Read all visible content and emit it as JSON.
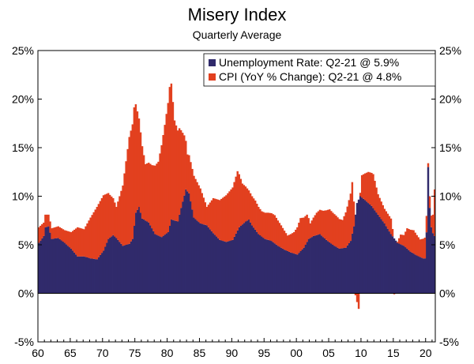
{
  "chart_data": {
    "type": "area",
    "title": "Misery Index",
    "subtitle": "Quarterly Average",
    "xlabel": "",
    "ylabel": "",
    "x_range": [
      1960,
      2021.5
    ],
    "ylim": [
      -5,
      25
    ],
    "y_ticks": [
      "25%",
      "20%",
      "15%",
      "10%",
      "5%",
      "0%",
      "-5%"
    ],
    "x_ticks": [
      "60",
      "65",
      "70",
      "75",
      "80",
      "85",
      "90",
      "95",
      "00",
      "05",
      "10",
      "15",
      "20"
    ],
    "legend_position": "top-right",
    "colors": {
      "unemployment": "#302a6b",
      "cpi": "#e2401f",
      "axis": "#000000"
    },
    "series": [
      {
        "name": "Unemployment Rate: Q2-21 @ 5.9%",
        "key": "unemployment",
        "points": [
          [
            1960.0,
            5.2
          ],
          [
            1960.75,
            5.9
          ],
          [
            1961.0,
            6.8
          ],
          [
            1961.5,
            6.9
          ],
          [
            1962.0,
            5.6
          ],
          [
            1963.0,
            5.7
          ],
          [
            1964.0,
            5.2
          ],
          [
            1965.0,
            4.6
          ],
          [
            1966.0,
            3.8
          ],
          [
            1967.0,
            3.8
          ],
          [
            1968.0,
            3.6
          ],
          [
            1969.0,
            3.5
          ],
          [
            1970.0,
            4.4
          ],
          [
            1970.75,
            5.6
          ],
          [
            1971.5,
            6.0
          ],
          [
            1972.0,
            5.7
          ],
          [
            1973.0,
            4.9
          ],
          [
            1974.0,
            5.1
          ],
          [
            1974.5,
            5.6
          ],
          [
            1975.0,
            8.3
          ],
          [
            1975.5,
            8.9
          ],
          [
            1976.0,
            7.7
          ],
          [
            1977.0,
            7.3
          ],
          [
            1978.0,
            6.1
          ],
          [
            1979.0,
            5.8
          ],
          [
            1980.0,
            6.3
          ],
          [
            1980.5,
            7.6
          ],
          [
            1981.5,
            7.4
          ],
          [
            1982.0,
            8.8
          ],
          [
            1982.75,
            10.7
          ],
          [
            1983.25,
            10.3
          ],
          [
            1984.0,
            7.8
          ],
          [
            1985.0,
            7.2
          ],
          [
            1986.0,
            7.0
          ],
          [
            1987.0,
            6.2
          ],
          [
            1988.0,
            5.5
          ],
          [
            1989.0,
            5.3
          ],
          [
            1990.0,
            5.5
          ],
          [
            1991.0,
            6.8
          ],
          [
            1992.0,
            7.4
          ],
          [
            1992.5,
            7.6
          ],
          [
            1993.0,
            7.0
          ],
          [
            1994.0,
            6.1
          ],
          [
            1995.0,
            5.6
          ],
          [
            1996.0,
            5.4
          ],
          [
            1997.0,
            4.9
          ],
          [
            1998.0,
            4.5
          ],
          [
            1999.0,
            4.2
          ],
          [
            2000.0,
            4.0
          ],
          [
            2001.0,
            4.7
          ],
          [
            2001.75,
            5.6
          ],
          [
            2002.5,
            5.9
          ],
          [
            2003.5,
            6.1
          ],
          [
            2004.5,
            5.5
          ],
          [
            2005.5,
            5.0
          ],
          [
            2006.5,
            4.6
          ],
          [
            2007.5,
            4.7
          ],
          [
            2008.25,
            5.4
          ],
          [
            2008.75,
            6.9
          ],
          [
            2009.25,
            9.3
          ],
          [
            2009.75,
            10.0
          ],
          [
            2010.5,
            9.6
          ],
          [
            2011.5,
            9.0
          ],
          [
            2012.5,
            8.1
          ],
          [
            2013.5,
            7.2
          ],
          [
            2014.5,
            6.1
          ],
          [
            2015.5,
            5.2
          ],
          [
            2016.5,
            4.9
          ],
          [
            2017.5,
            4.3
          ],
          [
            2018.5,
            3.9
          ],
          [
            2019.5,
            3.6
          ],
          [
            2019.9,
            3.6
          ],
          [
            2020.25,
            13.0
          ],
          [
            2020.5,
            8.8
          ],
          [
            2020.75,
            6.8
          ],
          [
            2021.0,
            6.2
          ],
          [
            2021.25,
            5.9
          ]
        ]
      },
      {
        "name": "CPI (YoY % Change): Q2-21 @ 4.8%",
        "key": "cpi",
        "points": [
          [
            1960.0,
            1.6
          ],
          [
            1961.0,
            1.3
          ],
          [
            1962.0,
            1.1
          ],
          [
            1963.0,
            1.2
          ],
          [
            1964.0,
            1.3
          ],
          [
            1965.0,
            1.7
          ],
          [
            1966.0,
            3.0
          ],
          [
            1967.0,
            2.8
          ],
          [
            1968.0,
            4.2
          ],
          [
            1969.0,
            5.4
          ],
          [
            1970.0,
            5.7
          ],
          [
            1971.0,
            4.4
          ],
          [
            1972.0,
            3.2
          ],
          [
            1973.0,
            6.2
          ],
          [
            1974.0,
            11.0
          ],
          [
            1974.75,
            12.2
          ],
          [
            1975.5,
            9.1
          ],
          [
            1976.5,
            5.8
          ],
          [
            1977.5,
            6.5
          ],
          [
            1978.5,
            7.6
          ],
          [
            1979.5,
            11.3
          ],
          [
            1980.25,
            14.3
          ],
          [
            1980.5,
            14.0
          ],
          [
            1981.0,
            10.3
          ],
          [
            1981.75,
            8.9
          ],
          [
            1982.5,
            6.2
          ],
          [
            1983.0,
            3.8
          ],
          [
            1984.0,
            4.3
          ],
          [
            1985.0,
            3.6
          ],
          [
            1986.0,
            1.9
          ],
          [
            1987.0,
            3.6
          ],
          [
            1988.0,
            4.1
          ],
          [
            1989.0,
            4.8
          ],
          [
            1990.0,
            5.4
          ],
          [
            1990.75,
            6.1
          ],
          [
            1991.5,
            4.2
          ],
          [
            1992.5,
            3.0
          ],
          [
            1993.5,
            3.0
          ],
          [
            1994.5,
            2.6
          ],
          [
            1995.5,
            2.8
          ],
          [
            1996.5,
            2.9
          ],
          [
            1997.5,
            2.3
          ],
          [
            1998.5,
            1.6
          ],
          [
            1999.5,
            2.2
          ],
          [
            2000.5,
            3.4
          ],
          [
            2001.5,
            2.8
          ],
          [
            2002.0,
            1.5
          ],
          [
            2003.0,
            2.3
          ],
          [
            2004.0,
            2.7
          ],
          [
            2005.0,
            3.4
          ],
          [
            2006.0,
            3.2
          ],
          [
            2007.0,
            2.9
          ],
          [
            2007.75,
            4.0
          ],
          [
            2008.5,
            5.3
          ],
          [
            2009.0,
            -0.2
          ],
          [
            2009.5,
            -1.6
          ],
          [
            2010.0,
            2.3
          ],
          [
            2011.0,
            3.2
          ],
          [
            2011.75,
            3.5
          ],
          [
            2012.5,
            2.1
          ],
          [
            2013.5,
            1.5
          ],
          [
            2014.5,
            1.6
          ],
          [
            2015.0,
            -0.1
          ],
          [
            2015.5,
            0.1
          ],
          [
            2016.0,
            1.0
          ],
          [
            2016.5,
            1.1
          ],
          [
            2017.0,
            2.1
          ],
          [
            2018.0,
            2.4
          ],
          [
            2019.0,
            1.8
          ],
          [
            2019.9,
            2.2
          ],
          [
            2020.25,
            0.4
          ],
          [
            2020.5,
            1.2
          ],
          [
            2020.75,
            1.2
          ],
          [
            2021.0,
            1.9
          ],
          [
            2021.25,
            4.8
          ]
        ]
      }
    ]
  }
}
